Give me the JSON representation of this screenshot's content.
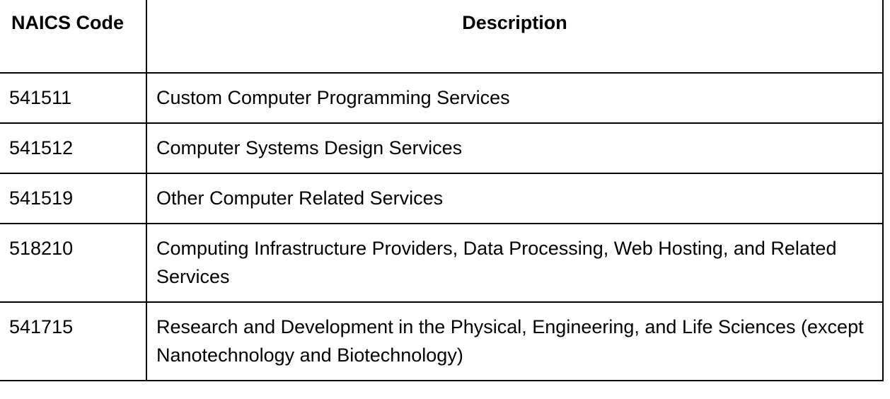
{
  "table": {
    "headers": {
      "code": "NAICS Code",
      "description": "Description"
    },
    "rows": [
      {
        "code": "541511",
        "description": "Custom Computer Programming Services"
      },
      {
        "code": "541512",
        "description": "Computer Systems Design Services"
      },
      {
        "code": "541519",
        "description": "Other Computer Related Services"
      },
      {
        "code": "518210",
        "description": "Computing Infrastructure Providers, Data Processing, Web Hosting, and Related Services"
      },
      {
        "code": "541715",
        "description": "Research and Development in the Physical, Engineering, and Life Sciences (except Nanotechnology and Biotechnology)"
      }
    ]
  }
}
